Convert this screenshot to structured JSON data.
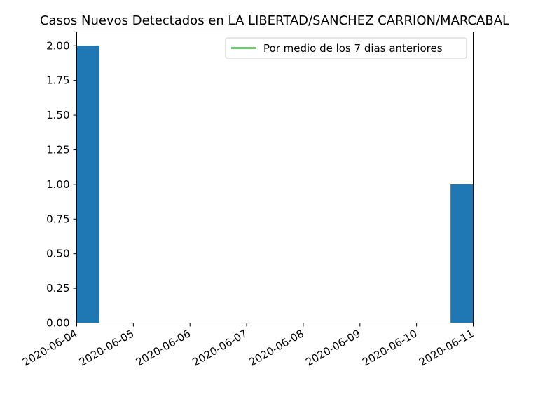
{
  "chart_data": {
    "type": "bar",
    "title": "Casos Nuevos Detectados en LA LIBERTAD/SANCHEZ CARRION/MARCABAL",
    "xlabel": "",
    "ylabel": "",
    "x_ticks": [
      "2020-06-04",
      "2020-06-05",
      "2020-06-06",
      "2020-06-07",
      "2020-06-08",
      "2020-06-09",
      "2020-06-10",
      "2020-06-11"
    ],
    "y_ticks": [
      "0.00",
      "0.25",
      "0.50",
      "0.75",
      "1.00",
      "1.25",
      "1.50",
      "1.75",
      "2.00"
    ],
    "ylim": [
      0,
      2.1
    ],
    "bars": [
      {
        "x": "2020-06-04",
        "value": 2
      },
      {
        "x": "2020-06-11",
        "value": 1
      }
    ],
    "series": [
      {
        "name": "Por medio de los 7 dias anteriores",
        "type": "line",
        "color": "#008000",
        "values": []
      }
    ],
    "bar_color": "#1f77b4",
    "legend": {
      "position": "upper right"
    },
    "grid": false
  }
}
